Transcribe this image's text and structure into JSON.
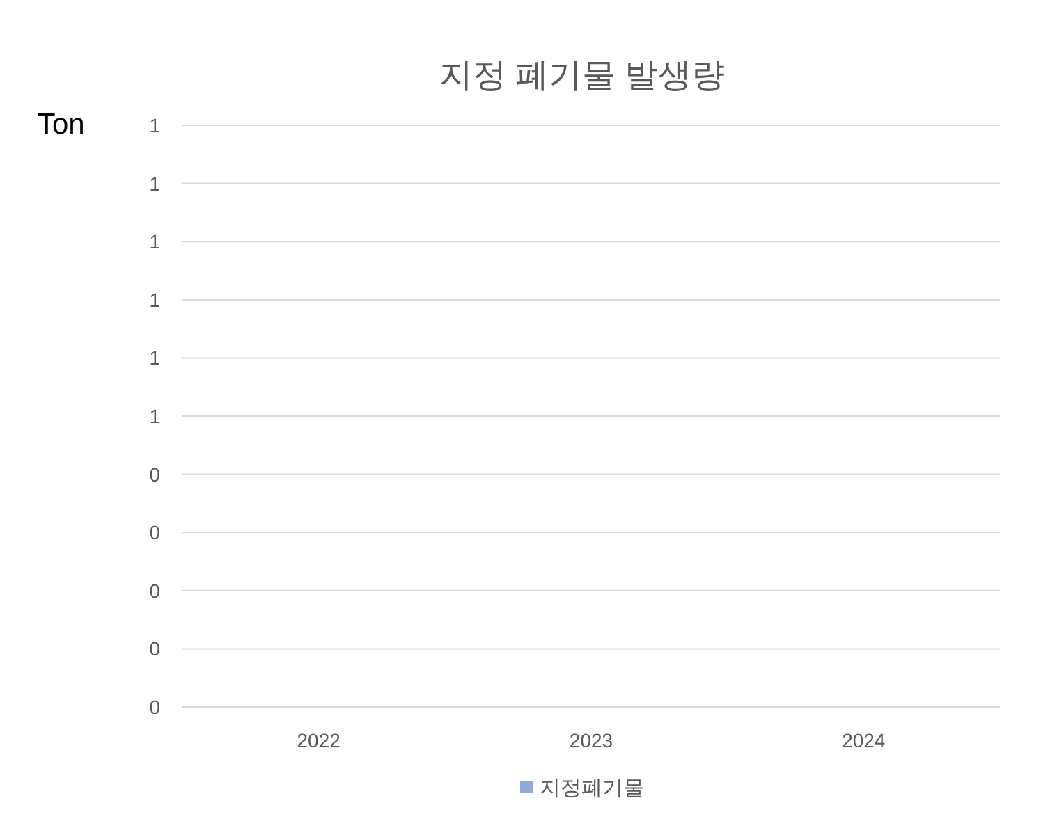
{
  "chart_data": {
    "type": "bar",
    "title": "지정 폐기물 발생량",
    "ylabel": "Ton",
    "categories": [
      "2022",
      "2023",
      "2024"
    ],
    "series": [
      {
        "name": "지정폐기물",
        "color": "#8faadc",
        "values": [
          0,
          0,
          0
        ]
      }
    ],
    "ylim": [
      0,
      1
    ],
    "yticks": [
      {
        "value": 0,
        "label": "0"
      },
      {
        "value": 0.1,
        "label": "0"
      },
      {
        "value": 0.2,
        "label": "0"
      },
      {
        "value": 0.3,
        "label": "0"
      },
      {
        "value": 0.4,
        "label": "0"
      },
      {
        "value": 0.5,
        "label": "1"
      },
      {
        "value": 0.6,
        "label": "1"
      },
      {
        "value": 0.7,
        "label": "1"
      },
      {
        "value": 0.8,
        "label": "1"
      },
      {
        "value": 0.9,
        "label": "1"
      },
      {
        "value": 1,
        "label": "1"
      }
    ],
    "grid": "y",
    "legend": "bottom"
  }
}
